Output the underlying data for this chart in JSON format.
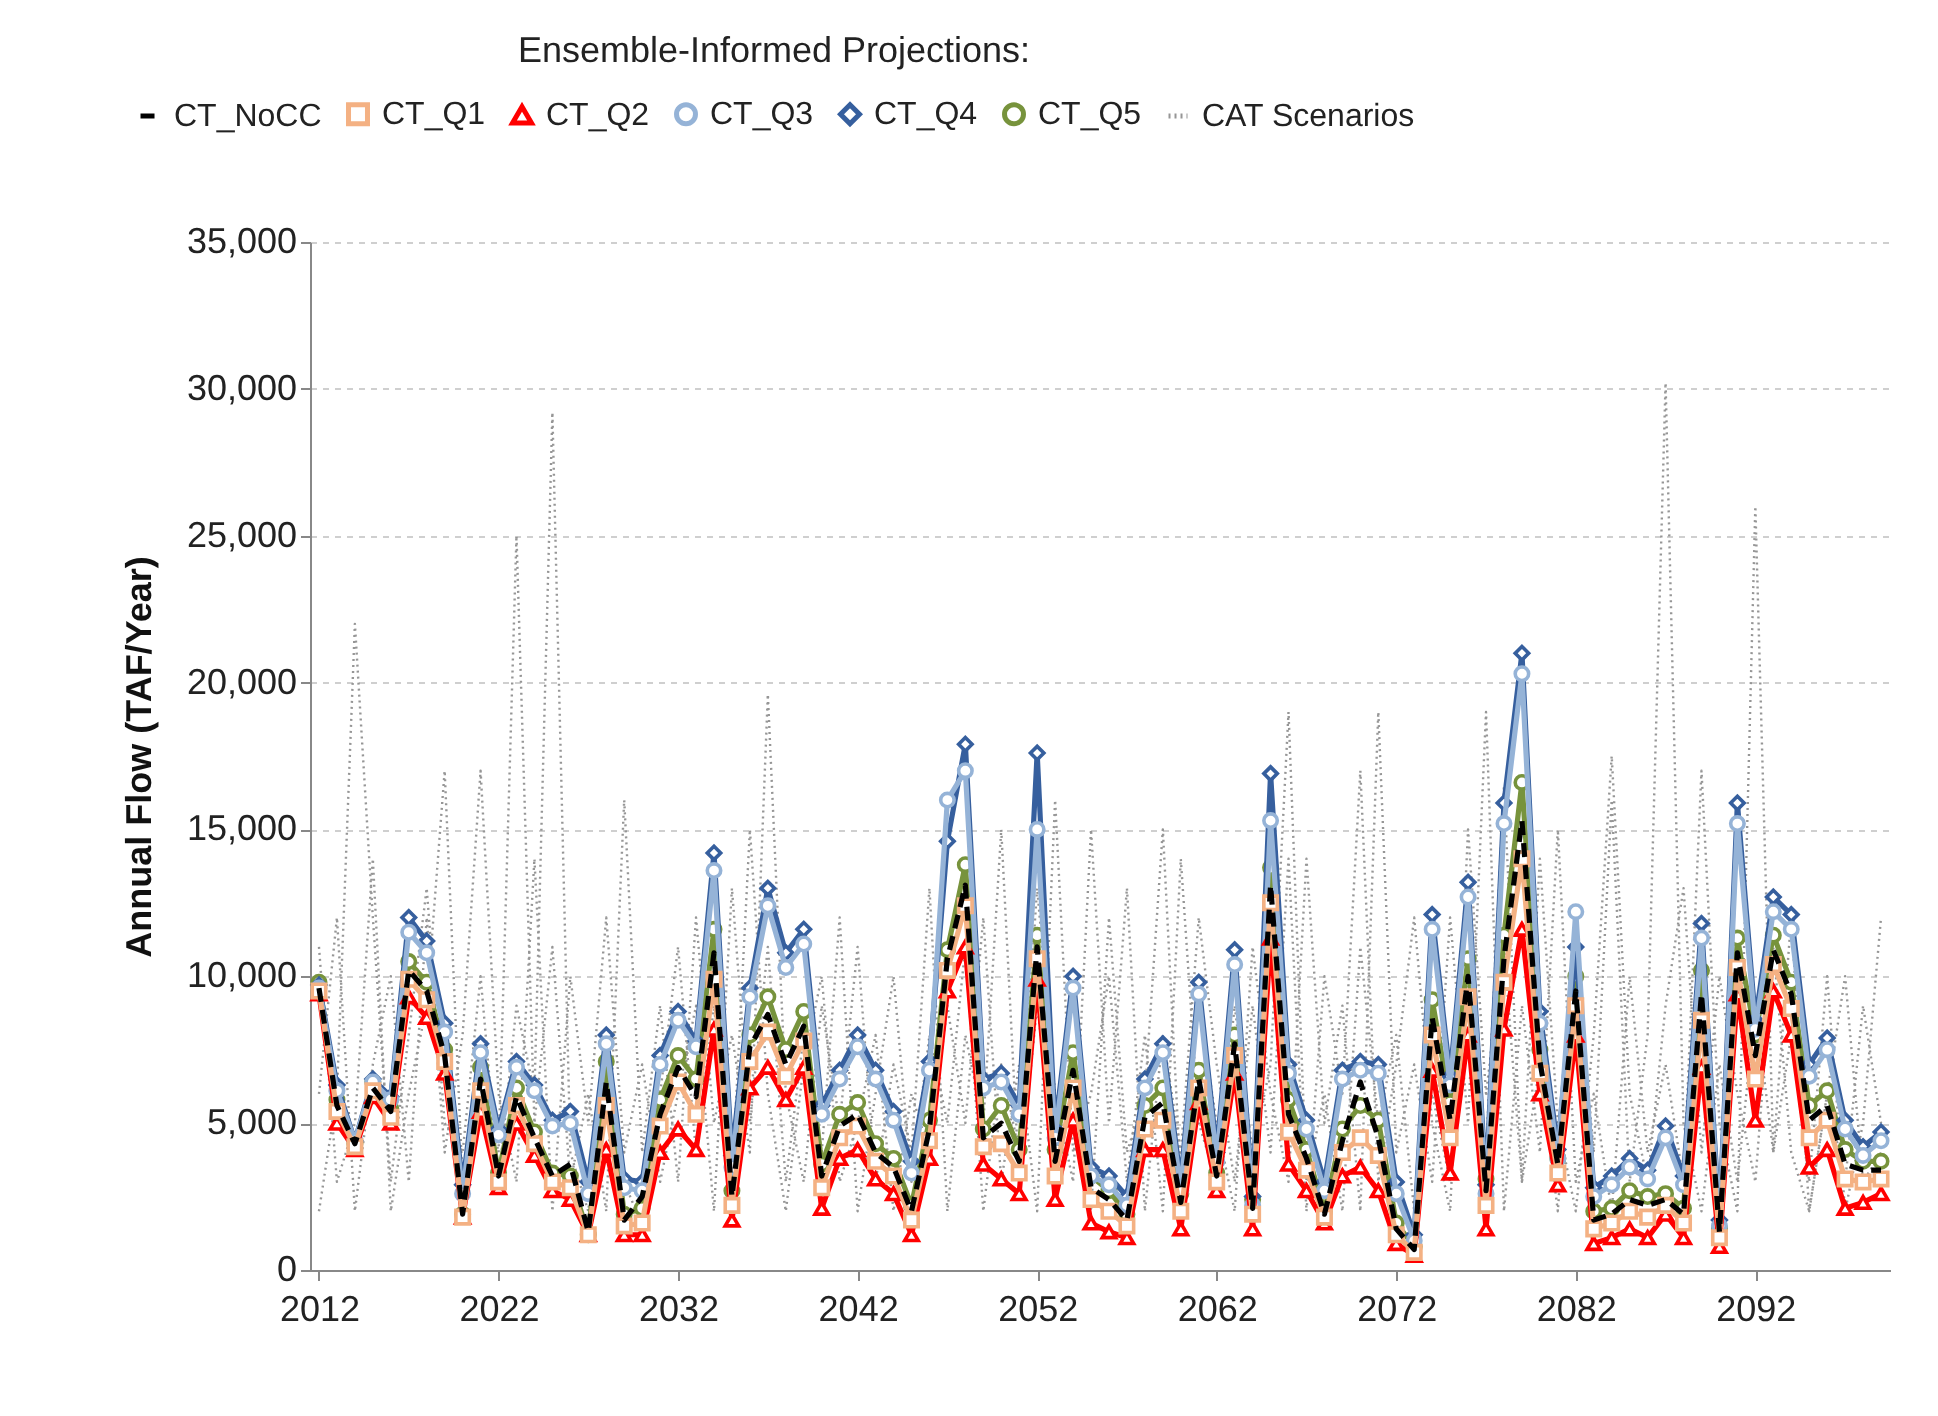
{
  "chart_data": {
    "type": "line",
    "ylabel": "Annual Flow (TAF/Year)",
    "legend_title": "Ensemble-Informed Projections:",
    "legend": "top",
    "grid": "y",
    "xlim": [
      2011.5,
      2099.5
    ],
    "xticks": [
      2012,
      2022,
      2032,
      2042,
      2052,
      2062,
      2072,
      2082,
      2092
    ],
    "ylim": [
      0,
      35000
    ],
    "yticks": [
      0,
      {
        "value": 5000,
        "label": "5,000"
      },
      {
        "value": 10000,
        "label": "10,000"
      },
      {
        "value": 15000,
        "label": "15,000"
      },
      {
        "value": 20000,
        "label": "20,000"
      },
      {
        "value": 25000,
        "label": "25,000"
      },
      {
        "value": 30000,
        "label": "30,000"
      },
      {
        "value": 35000,
        "label": "35,000"
      }
    ],
    "x": [
      2012,
      2013,
      2014,
      2015,
      2016,
      2017,
      2018,
      2019,
      2020,
      2021,
      2022,
      2023,
      2024,
      2025,
      2026,
      2027,
      2028,
      2029,
      2030,
      2031,
      2032,
      2033,
      2034,
      2035,
      2036,
      2037,
      2038,
      2039,
      2040,
      2041,
      2042,
      2043,
      2044,
      2045,
      2046,
      2047,
      2048,
      2049,
      2050,
      2051,
      2052,
      2053,
      2054,
      2055,
      2056,
      2057,
      2058,
      2059,
      2060,
      2061,
      2062,
      2063,
      2064,
      2065,
      2066,
      2067,
      2068,
      2069,
      2070,
      2071,
      2072,
      2073,
      2074,
      2075,
      2076,
      2077,
      2078,
      2079,
      2080,
      2081,
      2082,
      2083,
      2084,
      2085,
      2086,
      2087,
      2088,
      2089,
      2090,
      2091,
      2092,
      2093,
      2094,
      2095,
      2096,
      2097,
      2098,
      2099
    ],
    "series": [
      {
        "name": "CT_NoCC",
        "color": "#000000",
        "marker": "none",
        "line_style": "dashed",
        "values": [
          9600,
          5600,
          4300,
          6200,
          5400,
          10200,
          9500,
          7300,
          1900,
          6500,
          3200,
          5900,
          4500,
          3200,
          3600,
          1300,
          6400,
          1700,
          2500,
          5300,
          6900,
          5900,
          10800,
          2500,
          7600,
          8700,
          7000,
          8300,
          3200,
          4900,
          5300,
          4000,
          3500,
          2000,
          4800,
          10600,
          13100,
          4500,
          5000,
          3700,
          11000,
          3700,
          6800,
          2800,
          2400,
          1700,
          5200,
          5700,
          2300,
          6500,
          3200,
          7700,
          2100,
          13100,
          5300,
          3800,
          1900,
          4400,
          6400,
          4500,
          1400,
          700,
          8600,
          5100,
          10000,
          2700,
          10600,
          15300,
          7100,
          3600,
          9500,
          1700,
          1900,
          2400,
          2200,
          2400,
          1900,
          9400,
          1300,
          10800,
          7300,
          10900,
          9400,
          5100,
          5600,
          3600,
          3400,
          3400
        ]
      },
      {
        "name": "CT_Q1",
        "color": "#f4b183",
        "marker": "square",
        "line_style": "solid",
        "values": [
          9500,
          5400,
          4200,
          6100,
          5200,
          9900,
          9200,
          7100,
          1800,
          6100,
          3000,
          5600,
          4300,
          3000,
          2800,
          1200,
          5600,
          1500,
          1600,
          4900,
          6400,
          5300,
          9900,
          2200,
          7100,
          8100,
          6600,
          7800,
          2800,
          4500,
          4900,
          3700,
          3200,
          1700,
          4400,
          10200,
          12400,
          4200,
          4300,
          3300,
          10600,
          3200,
          6200,
          2400,
          2000,
          1500,
          4800,
          5100,
          2000,
          6200,
          3000,
          7300,
          1900,
          12500,
          4700,
          3400,
          1800,
          4000,
          4500,
          3900,
          1200,
          600,
          8000,
          4500,
          9300,
          2200,
          9800,
          14000,
          6700,
          3300,
          9000,
          1400,
          1600,
          2000,
          1800,
          2200,
          1600,
          8500,
          1100,
          10300,
          6500,
          10400,
          8900,
          4500,
          5100,
          3100,
          3000,
          3100
        ]
      },
      {
        "name": "CT_Q2",
        "color": "#ff0000",
        "marker": "triangle",
        "line_style": "solid",
        "values": [
          9400,
          5000,
          4100,
          5900,
          5000,
          9300,
          8600,
          6700,
          1800,
          5400,
          2800,
          5000,
          3900,
          2700,
          2400,
          1200,
          4100,
          1200,
          1200,
          4000,
          4800,
          4100,
          8200,
          1700,
          6200,
          6900,
          5800,
          6900,
          2100,
          3800,
          4100,
          3100,
          2600,
          1200,
          3800,
          9500,
          11000,
          3600,
          3100,
          2600,
          9900,
          2400,
          5100,
          1600,
          1300,
          1100,
          4100,
          4100,
          1400,
          5700,
          2700,
          6700,
          1400,
          11300,
          3600,
          2700,
          1600,
          3200,
          3500,
          2700,
          900,
          500,
          6800,
          3300,
          8000,
          1400,
          8200,
          11600,
          6000,
          2900,
          8000,
          900,
          1100,
          1400,
          1100,
          1900,
          1100,
          6900,
          800,
          9400,
          5100,
          9500,
          8000,
          3500,
          4100,
          2100,
          2300,
          2600
        ]
      },
      {
        "name": "CT_Q3",
        "color": "#95b3d7",
        "marker": "circle",
        "line_style": "solid",
        "values": [
          9600,
          6100,
          4400,
          6400,
          5800,
          11500,
          10800,
          8100,
          2600,
          7400,
          4600,
          6900,
          6100,
          4900,
          5000,
          2600,
          7700,
          2800,
          2700,
          7000,
          8500,
          7600,
          13600,
          3500,
          9300,
          12400,
          10300,
          11100,
          5300,
          6500,
          7600,
          6500,
          5100,
          3300,
          6800,
          16000,
          17000,
          6200,
          6400,
          5300,
          15000,
          4500,
          9600,
          3200,
          2900,
          2200,
          6200,
          7400,
          2700,
          9400,
          3700,
          10400,
          2200,
          15300,
          6700,
          4800,
          2700,
          6500,
          6800,
          6700,
          2600,
          1000,
          11600,
          6300,
          12700,
          2600,
          15200,
          20300,
          8400,
          3800,
          12200,
          2500,
          2900,
          3500,
          3100,
          4500,
          2900,
          11300,
          1500,
          15200,
          8200,
          12200,
          11600,
          6600,
          7500,
          4800,
          3900,
          4400
        ]
      },
      {
        "name": "CT_Q4",
        "color": "#365f9e",
        "marker": "diamond",
        "line_style": "solid",
        "values": [
          9700,
          6300,
          4400,
          6500,
          5900,
          12000,
          11200,
          8400,
          2900,
          7700,
          4800,
          7100,
          6300,
          5100,
          5400,
          3000,
          8000,
          3100,
          3000,
          7300,
          8800,
          7800,
          14200,
          3900,
          9600,
          13000,
          10800,
          11600,
          5600,
          6800,
          8000,
          6800,
          5400,
          3700,
          7100,
          14600,
          17900,
          6500,
          6700,
          5600,
          17600,
          4800,
          10000,
          3500,
          3200,
          2500,
          6500,
          7700,
          3000,
          9800,
          4000,
          10900,
          2500,
          16900,
          7000,
          5100,
          3000,
          6800,
          7100,
          7000,
          3000,
          1200,
          12100,
          6600,
          13200,
          2900,
          15900,
          21000,
          8800,
          4100,
          11000,
          2800,
          3200,
          3800,
          3400,
          4900,
          3200,
          11800,
          1700,
          15900,
          8500,
          12700,
          12100,
          7000,
          7900,
          5100,
          4200,
          4700
        ]
      },
      {
        "name": "CT_Q5",
        "color": "#77933c",
        "marker": "circle",
        "line_style": "solid",
        "values": [
          9800,
          5800,
          4300,
          6400,
          5500,
          10500,
          9800,
          7500,
          1900,
          6900,
          3300,
          6200,
          4700,
          3300,
          3200,
          1200,
          7100,
          1900,
          2100,
          5800,
          7300,
          6500,
          11600,
          2700,
          8000,
          9300,
          7500,
          8800,
          3600,
          5300,
          5700,
          4300,
          3800,
          2200,
          5100,
          10900,
          13800,
          4800,
          5600,
          4100,
          11400,
          4100,
          7400,
          3200,
          2700,
          1900,
          5600,
          6200,
          2600,
          6800,
          3300,
          8000,
          2400,
          13700,
          5800,
          4100,
          2000,
          4800,
          5600,
          5100,
          1600,
          800,
          9200,
          5700,
          10600,
          3100,
          11400,
          16600,
          7500,
          3800,
          10000,
          2000,
          2100,
          2700,
          2500,
          2600,
          2100,
          10200,
          1400,
          11300,
          8000,
          11400,
          9800,
          5600,
          6100,
          4100,
          3700,
          3700
        ]
      },
      {
        "name": "CAT Scenarios",
        "color": "#969696",
        "marker": "none",
        "line_style": "dotted",
        "values": [
          2000,
          6000,
          22000,
          12000,
          3000,
          8000,
          13000,
          5000,
          4000,
          10000,
          3000,
          9000,
          6000,
          29200,
          4000,
          2000,
          8000,
          3000,
          1500,
          6000,
          11000,
          4000,
          9000,
          3000,
          15000,
          6000,
          2000,
          7000,
          10000,
          3000,
          5000,
          8000,
          2000,
          6000,
          4000,
          9000,
          5000,
          12000,
          3000,
          7000,
          2000,
          16000,
          4000,
          6000,
          10000,
          3000,
          8000,
          2000,
          14000,
          5000,
          3000,
          9000,
          4000,
          7000,
          19000,
          3000,
          6000,
          2000,
          11000,
          5000,
          8000,
          2000,
          6000,
          3000,
          10000,
          4000,
          16500,
          3000,
          7000,
          2000,
          11000,
          4000,
          16000,
          3000,
          8000,
          30200,
          5000,
          2000,
          7000,
          3000,
          9000,
          4000,
          12000,
          2000,
          6000,
          3000,
          9000,
          5000
        ]
      },
      {
        "color": "#969696",
        "marker": "none",
        "line_style": "dotted",
        "values": [
          11000,
          3000,
          5000,
          14000,
          2000,
          6000,
          9000,
          17000,
          3000,
          7000,
          4000,
          25000,
          5000,
          11000,
          3000,
          6000,
          2000,
          16000,
          4000,
          9000,
          3000,
          12000,
          5000,
          8000,
          4000,
          19600,
          6000,
          3000,
          9000,
          5000,
          11000,
          3000,
          7000,
          4000,
          13000,
          2000,
          8000,
          5000,
          15000,
          3000,
          9000,
          4000,
          7000,
          2000,
          12000,
          4000,
          6000,
          15000,
          3000,
          9000,
          5000,
          2000,
          11000,
          6000,
          3000,
          14000,
          5000,
          9000,
          2000,
          19000,
          4000,
          7000,
          3000,
          12000,
          5000,
          19000,
          2000,
          9000,
          4000,
          15000,
          3000,
          6000,
          2000,
          10000,
          4000,
          7000,
          3000,
          17000,
          5000,
          2000,
          26000,
          4000,
          8000,
          3000,
          10000,
          2000,
          5000,
          12000
        ]
      },
      {
        "color": "#969696",
        "marker": "none",
        "line_style": "dotted",
        "values": [
          6000,
          12000,
          2000,
          7000,
          10000,
          3000,
          12000,
          4000,
          8000,
          17000,
          6000,
          3000,
          14000,
          2000,
          10000,
          5000,
          12000,
          4000,
          7000,
          3000,
          6000,
          9000,
          2000,
          13000,
          5000,
          11000,
          3000,
          8000,
          4000,
          12000,
          2000,
          6000,
          10000,
          3000,
          8000,
          5000,
          11000,
          2000,
          7000,
          4000,
          13000,
          6000,
          3000,
          15000,
          5000,
          13000,
          2000,
          8000,
          4000,
          12000,
          7000,
          3000,
          9000,
          4000,
          14000,
          2000,
          10000,
          6000,
          17000,
          3000,
          7000,
          12000,
          5000,
          2000,
          15000,
          6000,
          11000,
          3000,
          14000,
          5000,
          2000,
          8000,
          17500,
          6000,
          3000,
          9000,
          13000,
          4000,
          10000,
          6000,
          3000,
          11000,
          4000,
          2000,
          6000,
          10000,
          3000,
          4000
        ]
      }
    ]
  }
}
